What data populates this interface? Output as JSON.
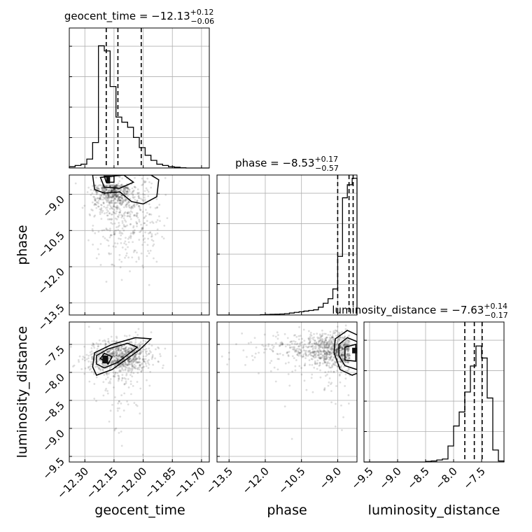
{
  "chart_data": {
    "type": "corner",
    "parameters": [
      {
        "name": "geocent_time",
        "title": {
          "prefix": "geocent_time = ",
          "median": "−12.13",
          "plus": "+0.12",
          "minus": "−0.06"
        },
        "range": [
          -12.38,
          -11.66
        ],
        "ticks": [
          -12.3,
          -12.15,
          -12.0,
          -11.85,
          -11.7
        ],
        "tick_labels": [
          "−12.30",
          "−12.15",
          "−12.00",
          "−11.85",
          "−11.70"
        ],
        "quantiles": [
          -12.19,
          -12.13,
          -12.01
        ],
        "hist_edges": [
          -12.38,
          -12.35,
          -12.32,
          -12.29,
          -12.26,
          -12.23,
          -12.2,
          -12.17,
          -12.14,
          -12.11,
          -12.08,
          -12.05,
          -12.02,
          -11.99,
          -11.96,
          -11.93,
          -11.9,
          -11.87,
          -11.84,
          -11.81,
          -11.78,
          -11.75,
          -11.72,
          -11.69,
          -11.66
        ],
        "hist_counts": [
          0.5,
          1.0,
          1.5,
          3.5,
          10,
          48,
          46,
          32,
          20,
          18,
          16,
          12,
          8,
          5,
          3,
          1.5,
          1,
          0.5,
          0.3,
          0.1,
          0,
          0,
          0,
          0
        ],
        "hist_max": 55
      },
      {
        "name": "phase",
        "title": {
          "prefix": "phase = ",
          "median": "−8.53",
          "plus": "+0.17",
          "minus": "−0.57"
        },
        "range": [
          -14.0,
          -8.2
        ],
        "ticks": [
          -13.5,
          -12.0,
          -10.5,
          -9.0
        ],
        "tick_labels": [
          "−13.5",
          "−12.0",
          "−10.5",
          "−9.0"
        ],
        "quantiles": [
          -9.0,
          -8.53,
          -8.36
        ],
        "hist_edges": [
          -14.0,
          -13.8,
          -13.6,
          -13.4,
          -13.2,
          -13.0,
          -12.8,
          -12.6,
          -12.4,
          -12.2,
          -12.0,
          -11.8,
          -11.6,
          -11.4,
          -11.2,
          -11.0,
          -10.8,
          -10.6,
          -10.4,
          -10.2,
          -10.0,
          -9.8,
          -9.6,
          -9.4,
          -9.2,
          -9.0,
          -8.8,
          -8.6,
          -8.4,
          -8.2
        ],
        "hist_counts": [
          0,
          0,
          0,
          0,
          0,
          0,
          0,
          0,
          0,
          0.5,
          0.8,
          1.0,
          1.2,
          1.5,
          2.0,
          3.0,
          4.0,
          5.0,
          6.0,
          7.0,
          8.0,
          12.0,
          18.0,
          25.0,
          40.0,
          90.0,
          180.0,
          200.0,
          210.0
        ],
        "hist_max": 215
      },
      {
        "name": "luminosity_distance",
        "title": {
          "prefix": "luminosity_distance = ",
          "median": "−7.63",
          "plus": "+0.14",
          "minus": "−0.17"
        },
        "range": [
          -9.6,
          -7.1
        ],
        "ticks": [
          -9.5,
          -9.0,
          -8.5,
          -8.0,
          -7.5
        ],
        "tick_labels": [
          "−9.5",
          "−9.0",
          "−8.5",
          "−8.0",
          "−7.5"
        ],
        "quantiles": [
          -7.8,
          -7.63,
          -7.49
        ],
        "hist_edges": [
          -9.6,
          -9.5,
          -9.4,
          -9.3,
          -9.2,
          -9.1,
          -9.0,
          -8.9,
          -8.8,
          -8.7,
          -8.6,
          -8.5,
          -8.4,
          -8.3,
          -8.2,
          -8.1,
          -8.0,
          -7.9,
          -7.8,
          -7.7,
          -7.6,
          -7.5,
          -7.4,
          -7.3,
          -7.2,
          -7.1
        ],
        "hist_counts": [
          0,
          0,
          0,
          0,
          0,
          0,
          0,
          0,
          0,
          0,
          0,
          0.3,
          0.5,
          1.0,
          1.5,
          8,
          18,
          25,
          35,
          48,
          58,
          52,
          32,
          6,
          0.5
        ],
        "hist_max": 70
      }
    ],
    "grid": true
  }
}
